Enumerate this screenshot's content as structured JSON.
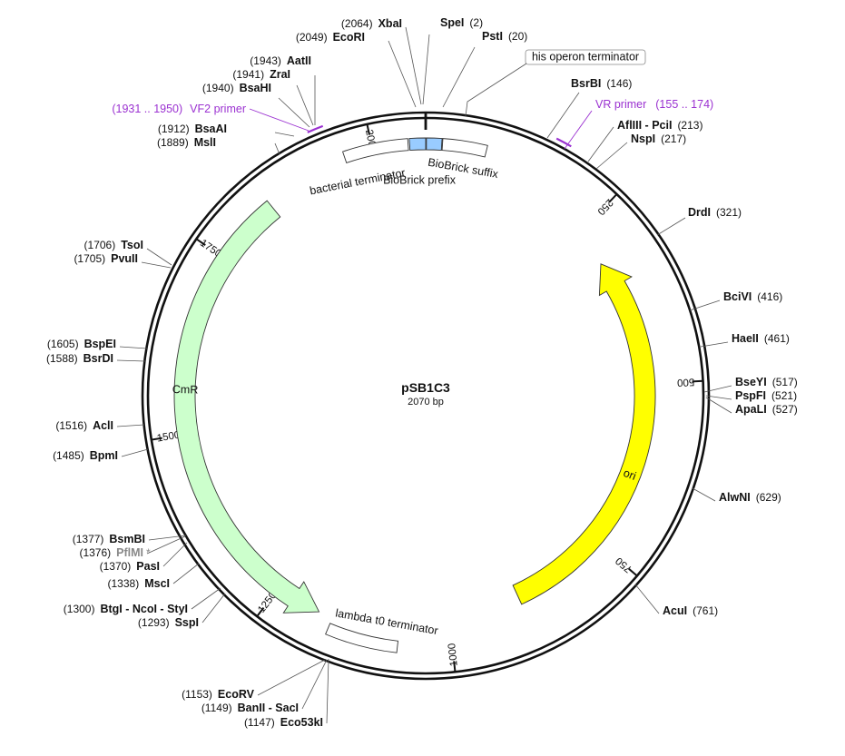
{
  "plasmid": {
    "name": "pSB1C3",
    "length_label": "2070 bp",
    "length": 2070
  },
  "scale_ticks": [
    {
      "pos": 250,
      "label": "250"
    },
    {
      "pos": 500,
      "label": "500"
    },
    {
      "pos": 750,
      "label": "750"
    },
    {
      "pos": 1000,
      "label": "1000"
    },
    {
      "pos": 1250,
      "label": "1250"
    },
    {
      "pos": 1500,
      "label": "1500"
    },
    {
      "pos": 1750,
      "label": "1750"
    },
    {
      "pos": 2000,
      "label": "2000"
    }
  ],
  "features": [
    {
      "name": "ori",
      "start": 305,
      "end": 893,
      "direction": "reverse",
      "color": "#ffff00"
    },
    {
      "name": "CmR",
      "start": 1186,
      "end": 1845,
      "direction": "reverse",
      "color": "#ccffcc"
    },
    {
      "name": "lambda t0 terminator",
      "start": 1072,
      "end": 1166,
      "direction": "none",
      "color": "#ffffff"
    },
    {
      "name": "bacterial terminator",
      "start": 1962,
      "end": 2047,
      "direction": "none",
      "color": "#ffffff"
    },
    {
      "name": "BioBrick prefix",
      "start": 2049,
      "end": 2070,
      "direction": "none",
      "color": "#99ccff"
    },
    {
      "name": "BioBrick suffix",
      "start": 1,
      "end": 21,
      "direction": "none",
      "color": "#99ccff"
    },
    {
      "name": "his operon terminator",
      "start": 22,
      "end": 80,
      "direction": "none",
      "color": "#ffffff"
    }
  ],
  "primers": [
    {
      "name": "VF2 primer",
      "range": "(1931 .. 1950)",
      "start": 1931,
      "end": 1950
    },
    {
      "name": "VR primer",
      "range": "(155 .. 174)",
      "start": 155,
      "end": 174
    }
  ],
  "sites": [
    {
      "name": "XbaI",
      "pos": "2064"
    },
    {
      "name": "EcoRI",
      "pos": "2049"
    },
    {
      "name": "SpeI",
      "pos": "2"
    },
    {
      "name": "PstI",
      "pos": "20"
    },
    {
      "name": "AatII",
      "pos": "1943"
    },
    {
      "name": "ZraI",
      "pos": "1941"
    },
    {
      "name": "BsaHI",
      "pos": "1940"
    },
    {
      "name": "BsaAI",
      "pos": "1912"
    },
    {
      "name": "MslI",
      "pos": "1889"
    },
    {
      "name": "BsrBI",
      "pos": "146"
    },
    {
      "name": "AflIII - PciI",
      "pos": "213"
    },
    {
      "name": "NspI",
      "pos": "217"
    },
    {
      "name": "DrdI",
      "pos": "321"
    },
    {
      "name": "BciVI",
      "pos": "416"
    },
    {
      "name": "HaeII",
      "pos": "461"
    },
    {
      "name": "BseYI",
      "pos": "517"
    },
    {
      "name": "PspFI",
      "pos": "521"
    },
    {
      "name": "ApaLI",
      "pos": "527"
    },
    {
      "name": "AlwNI",
      "pos": "629"
    },
    {
      "name": "AcuI",
      "pos": "761"
    },
    {
      "name": "TsoI",
      "pos": "1706"
    },
    {
      "name": "PvuII",
      "pos": "1705"
    },
    {
      "name": "BspEI",
      "pos": "1605"
    },
    {
      "name": "BsrDI",
      "pos": "1588"
    },
    {
      "name": "AclI",
      "pos": "1516"
    },
    {
      "name": "BpmI",
      "pos": "1485"
    },
    {
      "name": "BsmBI",
      "pos": "1377"
    },
    {
      "name": "PflMI",
      "pos": "1376",
      "dim": true,
      "suffix": "*"
    },
    {
      "name": "PasI",
      "pos": "1370"
    },
    {
      "name": "MscI",
      "pos": "1338"
    },
    {
      "name": "BtgI - NcoI - StyI",
      "pos": "1300"
    },
    {
      "name": "SspI",
      "pos": "1293"
    },
    {
      "name": "EcoRV",
      "pos": "1153"
    },
    {
      "name": "BanII - SacI",
      "pos": "1149"
    },
    {
      "name": "Eco53kI",
      "pos": "1147"
    }
  ]
}
